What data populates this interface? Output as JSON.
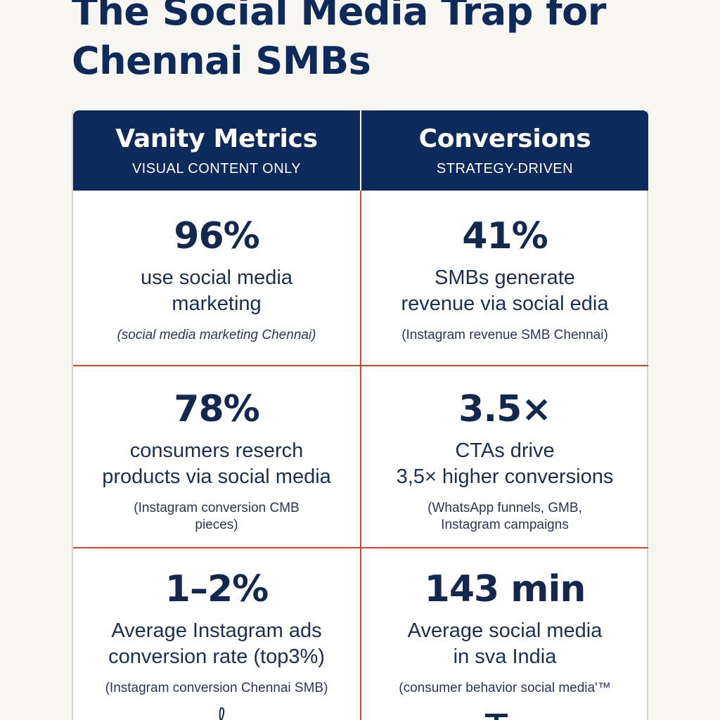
{
  "title": "The Social Media Trap for\nChennai SMBs",
  "columns": [
    {
      "title": "Vanity Metrics",
      "subtitle": "VISUAL CONTENT ONLY"
    },
    {
      "title": "Conversions",
      "subtitle": "STRATEGY-DRIVEN"
    }
  ],
  "rows": [
    [
      {
        "stat": "96%",
        "desc": "use social media\nmarketing",
        "source": "(social media marketing Chennai)"
      },
      {
        "stat": "41%",
        "desc": "SMBs generate\nrevenue via social edia",
        "source": "(Instagram revenue SMB Chennai)"
      }
    ],
    [
      {
        "stat": "78%",
        "desc": "consumers reserch\nproducts via social media",
        "source": "(Instagram conversion CMB\npieces)"
      },
      {
        "stat": "3.5×",
        "desc": "CTAs drive\n3,5× higher conversions",
        "source": "(WhatsApp funnels, GMB,\nInstagram campaigns"
      }
    ],
    [
      {
        "stat": "1–2%",
        "desc": "Average Instagram ads\nconversion rate (top3%)",
        "source": "(Instagram conversion Chennai SMB)"
      },
      {
        "stat": "143 min",
        "desc": "Average social media\nin sva India",
        "source": "(consumer behavior social media'™"
      }
    ]
  ],
  "colors": {
    "header_bg": "#0d2a5c",
    "divider": "#d8452a",
    "text": "#13284e",
    "page_bg": "#f8f6f1"
  }
}
